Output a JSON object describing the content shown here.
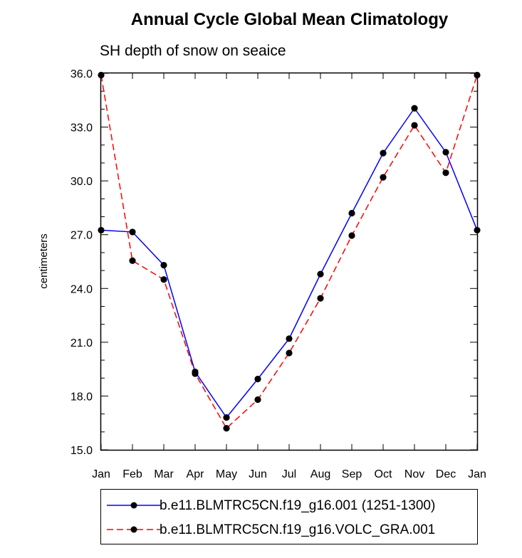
{
  "chart_data": {
    "type": "line",
    "title": "Annual Cycle Global Mean Climatology",
    "subtitle": "SH depth of snow on seaice",
    "xlabel": "",
    "ylabel": "centimeters",
    "categories": [
      "Jan",
      "Feb",
      "Mar",
      "Apr",
      "May",
      "Jun",
      "Jul",
      "Aug",
      "Sep",
      "Oct",
      "Nov",
      "Dec",
      "Jan"
    ],
    "ylim": [
      15.0,
      36.0
    ],
    "yticks": [
      "15.0",
      "18.0",
      "21.0",
      "24.0",
      "27.0",
      "30.0",
      "33.0",
      "36.0"
    ],
    "series": [
      {
        "name": "b.e11.BLMTRC5CN.f19_g16.001 (1251-1300)",
        "color": "#0000ff",
        "dash": "solid",
        "values": [
          27.25,
          27.15,
          25.3,
          19.35,
          16.8,
          18.95,
          21.2,
          24.8,
          28.2,
          31.55,
          34.05,
          31.6,
          27.25
        ]
      },
      {
        "name": "b.e11.BLMTRC5CN.f19_g16.VOLC_GRA.001",
        "color": "#ff0000",
        "dash": "dashed",
        "values": [
          35.9,
          25.55,
          24.5,
          19.25,
          16.2,
          17.8,
          20.4,
          23.45,
          26.95,
          30.2,
          33.1,
          30.45,
          35.9
        ]
      }
    ]
  }
}
